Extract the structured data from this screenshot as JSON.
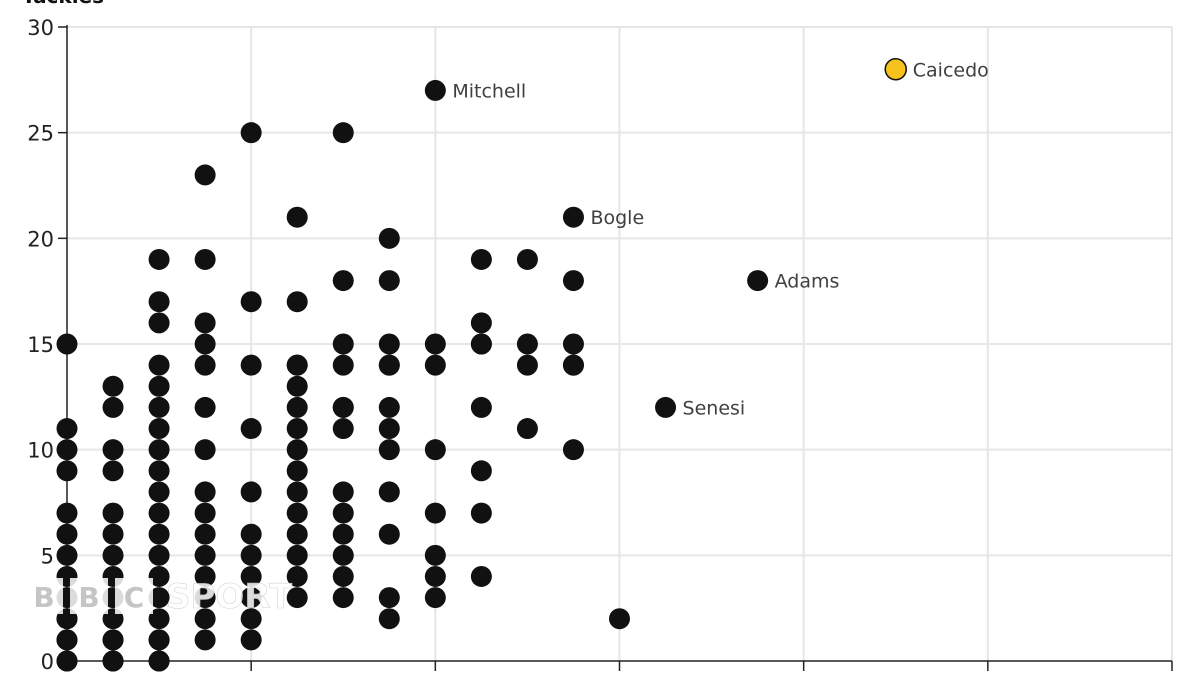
{
  "chart_data": {
    "type": "scatter",
    "ylabel": "Tackles",
    "xlabel": "",
    "ylim": [
      0,
      30
    ],
    "yticks": [
      0,
      5,
      10,
      15,
      20,
      25,
      30
    ],
    "xlim": [
      0,
      12
    ],
    "xticks": [
      0,
      2,
      4,
      6,
      8,
      10,
      12
    ],
    "grid": true,
    "x_tick_labels_visible": false,
    "colors": {
      "default": "#111111",
      "highlight": "#f6c21b",
      "grid": "#e6e6e6",
      "axis": "#222222"
    },
    "x": [
      0,
      0,
      0,
      0,
      0,
      0,
      0,
      0,
      0,
      0,
      0,
      0,
      0,
      0,
      0,
      0.5,
      0.5,
      0.5,
      0.5,
      0.5,
      0.5,
      0.5,
      0.5,
      0.5,
      0.5,
      0.5,
      0.5,
      0.5,
      0.5,
      1,
      1,
      1,
      1,
      1,
      1,
      1,
      1,
      1,
      1,
      1,
      1,
      1,
      1,
      1,
      1,
      1,
      1,
      1,
      1,
      1.5,
      1.5,
      1.5,
      1.5,
      1.5,
      1.5,
      1.5,
      1.5,
      1.5,
      1.5,
      1.5,
      1.5,
      1.5,
      1.5,
      1.5,
      2,
      2,
      2,
      2,
      2,
      2,
      2,
      2,
      2,
      2,
      2,
      2.5,
      2.5,
      2.5,
      2.5,
      2.5,
      2.5,
      2.5,
      2.5,
      2.5,
      2.5,
      2.5,
      2.5,
      2.5,
      2.5,
      2.5,
      3,
      3,
      3,
      3,
      3,
      3,
      3,
      3,
      3,
      3,
      3,
      3,
      3,
      3.5,
      3.5,
      3.5,
      3.5,
      3.5,
      3.5,
      3.5,
      3.5,
      3.5,
      3.5,
      3.5,
      3.5,
      4,
      4,
      4,
      4,
      4,
      4,
      4,
      4,
      4.5,
      4.5,
      4.5,
      4.5,
      4.5,
      4.5,
      4.5,
      4.5,
      5,
      5,
      5,
      5,
      5.5,
      5.5,
      5.5,
      5.5,
      5.5,
      5.5,
      6,
      6.5,
      7.5,
      9
    ],
    "y": [
      0,
      1,
      2,
      3,
      4,
      5,
      6,
      7,
      9,
      10,
      11,
      15,
      0,
      1,
      2,
      0,
      1,
      2,
      3,
      4,
      5,
      6,
      7,
      9,
      10,
      12,
      13,
      0,
      1,
      0,
      1,
      2,
      3,
      4,
      5,
      6,
      7,
      8,
      9,
      10,
      11,
      12,
      13,
      14,
      16,
      17,
      19,
      0,
      1,
      1,
      2,
      3,
      4,
      5,
      6,
      7,
      8,
      10,
      12,
      14,
      15,
      16,
      19,
      23,
      1,
      2,
      3,
      4,
      5,
      6,
      8,
      11,
      14,
      17,
      25,
      3,
      4,
      5,
      6,
      7,
      8,
      9,
      10,
      11,
      12,
      13,
      14,
      17,
      21,
      14,
      3,
      4,
      5,
      6,
      7,
      8,
      11,
      12,
      14,
      15,
      18,
      25,
      12,
      2,
      3,
      6,
      8,
      10,
      11,
      12,
      14,
      15,
      18,
      20,
      14,
      3,
      4,
      5,
      7,
      10,
      14,
      15,
      27,
      4,
      7,
      9,
      12,
      15,
      16,
      19,
      15,
      11,
      14,
      15,
      19,
      10,
      14,
      15,
      18,
      21,
      14,
      2,
      12,
      18,
      28
    ],
    "labeled_points": [
      {
        "name": "Mitchell",
        "x": 4,
        "y": 27,
        "highlight": false
      },
      {
        "name": "Bogle",
        "x": 5.5,
        "y": 21,
        "highlight": false
      },
      {
        "name": "Adams",
        "x": 7.5,
        "y": 18,
        "highlight": false
      },
      {
        "name": "Senesi",
        "x": 6.5,
        "y": 12,
        "highlight": false
      },
      {
        "name": "Caicedo",
        "x": 9,
        "y": 28,
        "highlight": true
      }
    ]
  },
  "watermark": {
    "letters": [
      "B",
      "B",
      "C"
    ],
    "word": "SPORT"
  }
}
